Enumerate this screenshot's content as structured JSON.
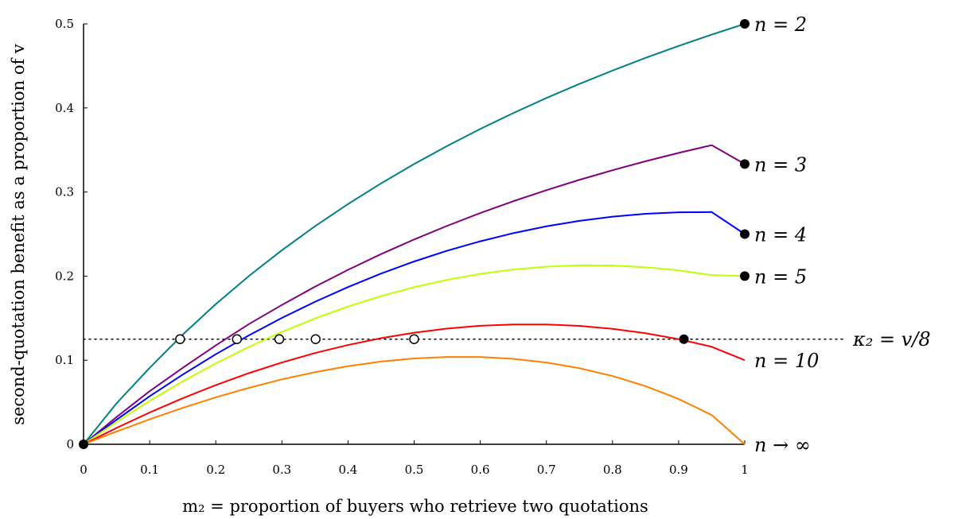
{
  "chart_data": {
    "type": "line",
    "xlabel": "m₂ = proportion of buyers who retrieve two quotations",
    "ylabel": "second-quotation benefit as a proportion of v",
    "xlim": [
      0,
      1
    ],
    "ylim": [
      0,
      0.5
    ],
    "x_ticks": [
      0,
      0.1,
      0.2,
      0.3,
      0.4,
      0.5,
      0.6,
      0.7,
      0.8,
      0.9,
      1
    ],
    "x_tick_labels": [
      "0",
      "0.1",
      "0.2",
      "0.3",
      "0.4",
      "0.5",
      "0.6",
      "0.7",
      "0.8",
      "0.9",
      "1"
    ],
    "y_ticks": [
      0,
      0.1,
      0.2,
      0.3,
      0.4,
      0.5
    ],
    "y_tick_labels": [
      "0",
      "0.1",
      "0.2",
      "0.3",
      "0.4",
      "0.5"
    ],
    "grid": false,
    "x": [
      0,
      0.05,
      0.1,
      0.15,
      0.2,
      0.25,
      0.3,
      0.35,
      0.4,
      0.45,
      0.5,
      0.55,
      0.6,
      0.65,
      0.7,
      0.75,
      0.8,
      0.85,
      0.9,
      0.95,
      1
    ],
    "series": [
      {
        "name": "n = 2",
        "label": "n = 2",
        "color": "#008080",
        "values": [
          0,
          0.0488,
          0.0909,
          0.1304,
          0.1667,
          0.2,
          0.2308,
          0.2593,
          0.2857,
          0.3103,
          0.3333,
          0.3548,
          0.375,
          0.3939,
          0.4118,
          0.4286,
          0.4444,
          0.4595,
          0.4737,
          0.4872,
          0.5
        ]
      },
      {
        "name": "n = 3",
        "label": "n = 3",
        "color": "#800080",
        "values": [
          0,
          0.0325,
          0.0632,
          0.0909,
          0.1176,
          0.1429,
          0.1657,
          0.1874,
          0.2075,
          0.2262,
          0.2436,
          0.2598,
          0.275,
          0.2891,
          0.3022,
          0.3145,
          0.3259,
          0.3366,
          0.3465,
          0.3557,
          0.3333
        ]
      },
      {
        "name": "n = 4",
        "label": "n = 4",
        "color": "#0000ff",
        "values": [
          0,
          0.0293,
          0.0571,
          0.0829,
          0.1071,
          0.1295,
          0.1503,
          0.1694,
          0.187,
          0.203,
          0.2174,
          0.2302,
          0.2414,
          0.2511,
          0.2592,
          0.2657,
          0.2707,
          0.2741,
          0.2759,
          0.2762,
          0.25
        ]
      },
      {
        "name": "n = 5",
        "label": "n = 5",
        "color": "#bfff00",
        "values": [
          0,
          0.0267,
          0.0516,
          0.0748,
          0.0962,
          0.1158,
          0.1336,
          0.1496,
          0.1638,
          0.1762,
          0.1868,
          0.1956,
          0.2026,
          0.2078,
          0.2112,
          0.2128,
          0.2126,
          0.2106,
          0.2068,
          0.2012,
          0.2
        ]
      },
      {
        "name": "n = 10",
        "label": "n = 10",
        "color": "#ff0000",
        "values": [
          0,
          0.0195,
          0.0378,
          0.0548,
          0.0704,
          0.0846,
          0.0973,
          0.1085,
          0.1181,
          0.1262,
          0.1327,
          0.1376,
          0.1409,
          0.1425,
          0.1425,
          0.1408,
          0.1373,
          0.1321,
          0.125,
          0.116,
          0.1
        ]
      },
      {
        "name": "n → ∞",
        "label": "n → ∞",
        "color": "#ff8000",
        "values": [
          0,
          0.0152,
          0.0297,
          0.0433,
          0.0558,
          0.0671,
          0.0772,
          0.0858,
          0.0929,
          0.0984,
          0.1021,
          0.1039,
          0.1038,
          0.1016,
          0.0972,
          0.0905,
          0.0812,
          0.0691,
          0.0539,
          0.0348,
          0.0
        ]
      }
    ],
    "threshold": {
      "label": "κ₂ = v/8",
      "y": 0.125,
      "style": "dotted"
    },
    "open_markers": [
      {
        "x": 0.146,
        "y": 0.125
      },
      {
        "x": 0.232,
        "y": 0.125
      },
      {
        "x": 0.296,
        "y": 0.125
      },
      {
        "x": 0.351,
        "y": 0.125
      },
      {
        "x": 0.5,
        "y": 0.125
      }
    ],
    "filled_markers": [
      {
        "x": 0,
        "y": 0
      },
      {
        "x": 1,
        "y": 0.5
      },
      {
        "x": 1,
        "y": 0.3333
      },
      {
        "x": 1,
        "y": 0.25
      },
      {
        "x": 1,
        "y": 0.2
      },
      {
        "x": 0.908,
        "y": 0.125
      }
    ]
  }
}
